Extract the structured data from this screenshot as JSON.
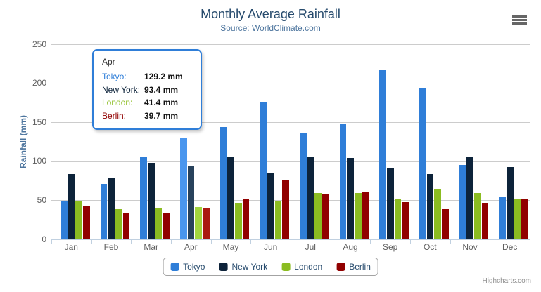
{
  "credits": "Highcharts.com",
  "toolbar": {
    "context_menu_icon": "hamburger-icon"
  },
  "chart_data": {
    "type": "bar",
    "title": "Monthly Average Rainfall",
    "subtitle": "Source: WorldClimate.com",
    "ylabel": "Rainfall (mm)",
    "xlabel": "",
    "ylim": [
      0,
      250
    ],
    "ytick_step": 50,
    "grid": true,
    "legend_position": "bottom",
    "value_suffix": "mm",
    "hovered_index": 3,
    "categories": [
      "Jan",
      "Feb",
      "Mar",
      "Apr",
      "May",
      "Jun",
      "Jul",
      "Aug",
      "Sep",
      "Oct",
      "Nov",
      "Dec"
    ],
    "series": [
      {
        "name": "Tokyo",
        "color": "#2f7ed8",
        "hover_color": "#4a96ee",
        "values": [
          49.9,
          71.5,
          106.4,
          129.2,
          144.0,
          176.0,
          135.6,
          148.5,
          216.4,
          194.1,
          95.6,
          54.4
        ]
      },
      {
        "name": "New York",
        "color": "#0d233a",
        "hover_color": "#28425c",
        "values": [
          83.6,
          78.8,
          98.5,
          93.4,
          106.0,
          84.5,
          105.0,
          104.3,
          91.2,
          83.5,
          106.6,
          92.3
        ]
      },
      {
        "name": "London",
        "color": "#8bbc21",
        "hover_color": "#a2d53e",
        "values": [
          48.9,
          38.8,
          39.3,
          41.4,
          47.0,
          48.3,
          59.0,
          59.6,
          52.4,
          65.2,
          59.3,
          51.2
        ]
      },
      {
        "name": "Berlin",
        "color": "#910000",
        "hover_color": "#aa1a11",
        "values": [
          42.4,
          33.2,
          34.5,
          39.7,
          52.6,
          75.5,
          57.4,
          60.4,
          47.6,
          39.1,
          46.8,
          51.1
        ]
      }
    ],
    "colors": {
      "title": "#274b6d",
      "subtitle": "#4d759e",
      "axis_title": "#4d759e",
      "axis_labels": "#606060",
      "axis_line": "#c0d0e0",
      "gridline": "#cccccc",
      "legend_text": "#274b6d",
      "tooltip_border": "#2f7ed8",
      "credits": "#909090"
    }
  }
}
